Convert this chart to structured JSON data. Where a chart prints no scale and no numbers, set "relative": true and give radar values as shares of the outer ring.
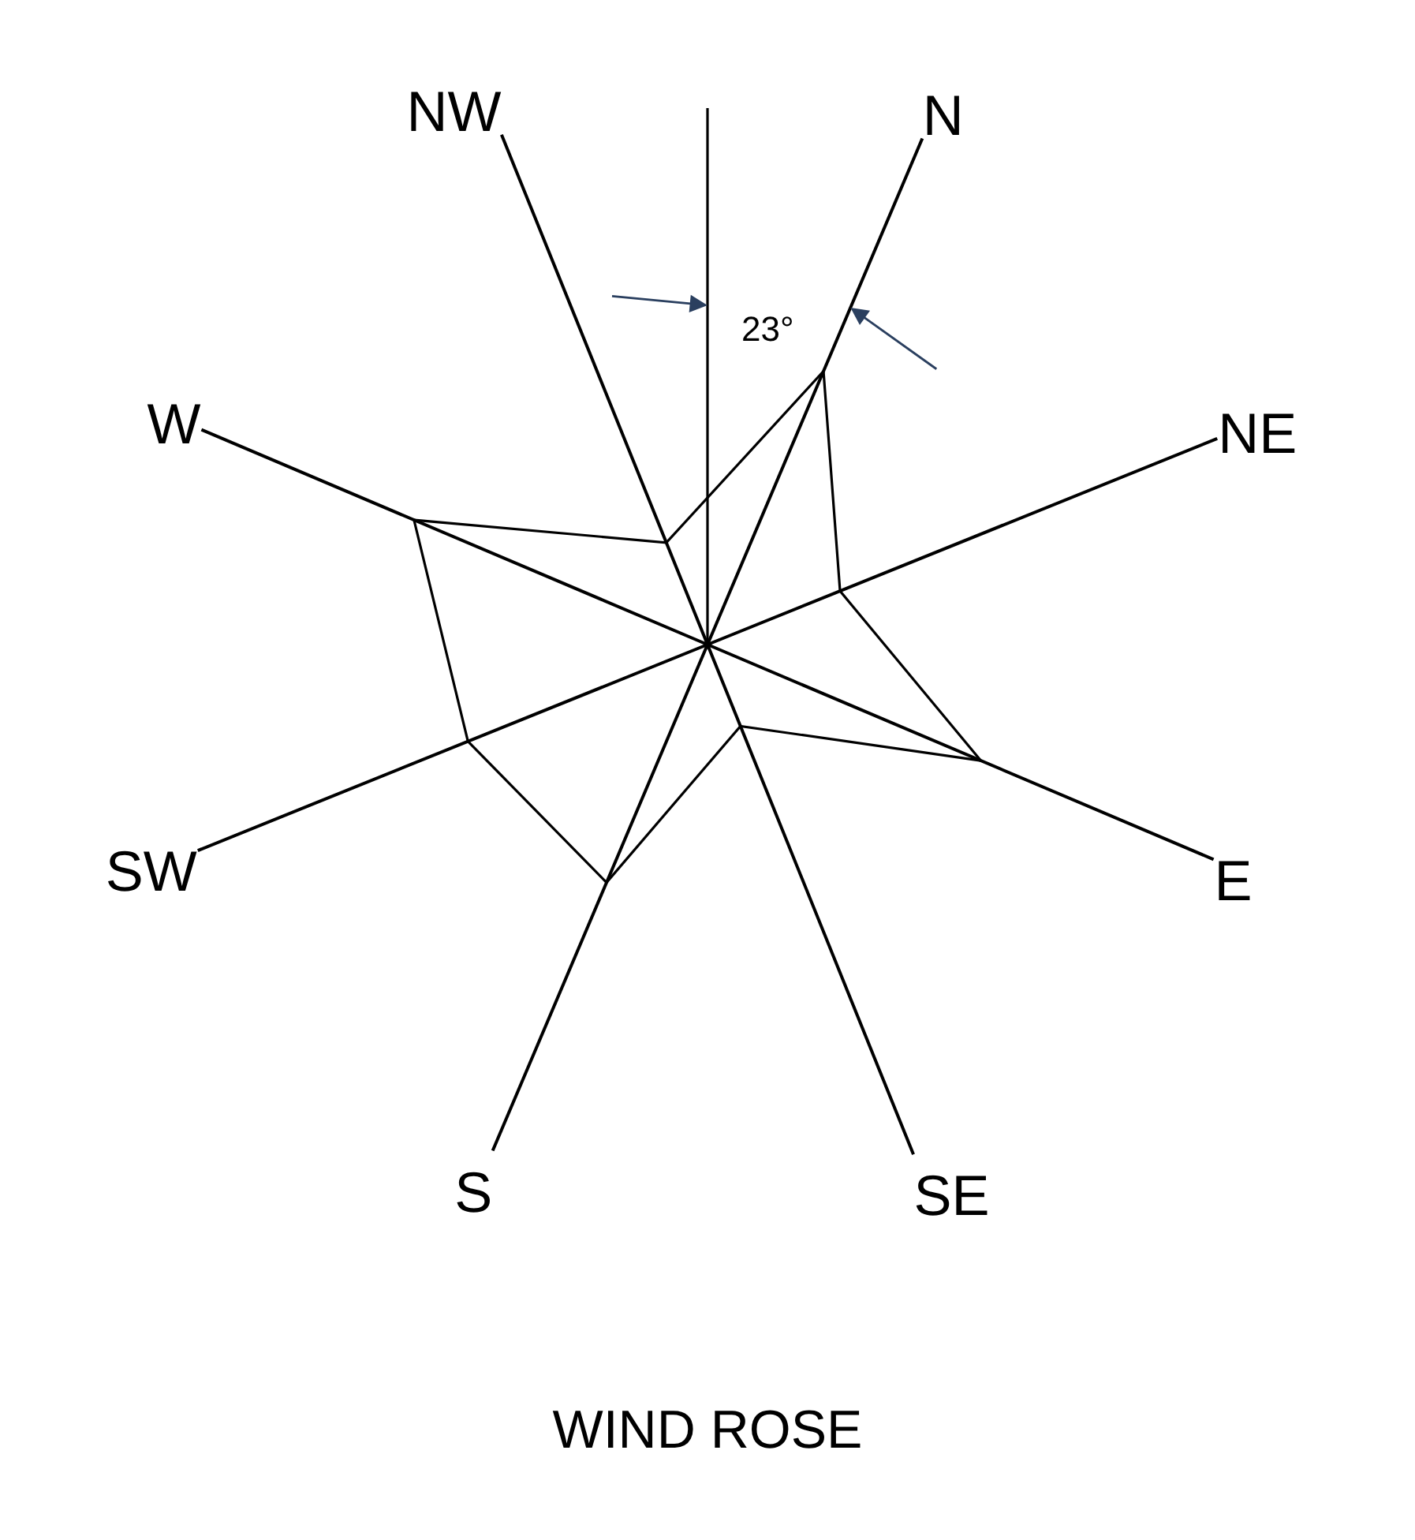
{
  "chart_data": {
    "type": "radar",
    "title": "WIND ROSE",
    "categories": [
      "N",
      "NE",
      "E",
      "SE",
      "S",
      "SW",
      "W",
      "NW"
    ],
    "relative": true,
    "series": [
      {
        "color": "#000000",
        "values": [
          0.54,
          0.26,
          0.54,
          0.16,
          0.47,
          0.47,
          0.58,
          0.2
        ]
      }
    ],
    "annotations": [
      "23°"
    ],
    "grid": "x",
    "marker": "none"
  }
}
